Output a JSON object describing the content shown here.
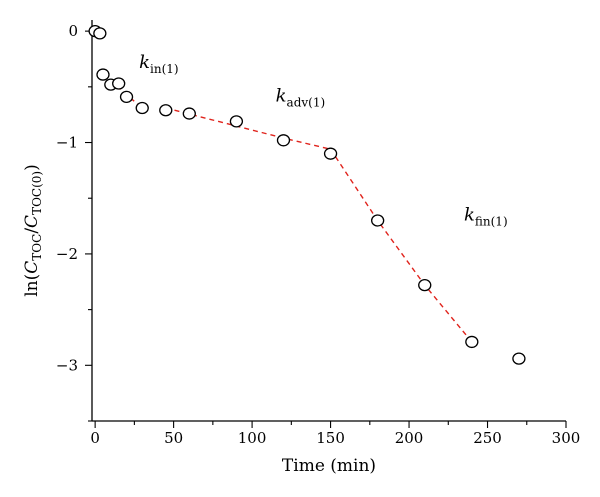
{
  "chart_data": {
    "type": "scatter",
    "title": "",
    "xlabel": "Time (min)",
    "ylabel": {
      "base": "ln(",
      "c1": "C",
      "c1_sub": "TOC",
      "slash": "/",
      "c2": "C",
      "c2_sub": "TOC(0)",
      "close": ")"
    },
    "xlim": [
      -2,
      300
    ],
    "ylim": [
      -3.5,
      0.1
    ],
    "x_ticks": [
      0,
      50,
      100,
      150,
      200,
      250,
      300
    ],
    "y_ticks": [
      0,
      -1,
      -2,
      -3
    ],
    "x_tick_labels": [
      "0",
      "50",
      "100",
      "150",
      "200",
      "250",
      "300"
    ],
    "y_tick_labels": [
      "0",
      "−1",
      "−2",
      "−3"
    ],
    "series": [
      {
        "marker": "open-circle",
        "color": "#000000",
        "points": [
          {
            "x": 0,
            "y": 0.0
          },
          {
            "x": 3,
            "y": -0.02
          },
          {
            "x": 5,
            "y": -0.39
          },
          {
            "x": 10,
            "y": -0.48
          },
          {
            "x": 15,
            "y": -0.47
          },
          {
            "x": 20,
            "y": -0.59
          },
          {
            "x": 30,
            "y": -0.69
          },
          {
            "x": 45,
            "y": -0.71
          },
          {
            "x": 60,
            "y": -0.74
          },
          {
            "x": 90,
            "y": -0.81
          },
          {
            "x": 120,
            "y": -0.98
          },
          {
            "x": 150,
            "y": -1.1
          },
          {
            "x": 180,
            "y": -1.7
          },
          {
            "x": 210,
            "y": -2.28
          },
          {
            "x": 240,
            "y": -2.79
          },
          {
            "x": 270,
            "y": -2.94
          }
        ]
      }
    ],
    "fit_lines": [
      {
        "color": "#e0231c",
        "style": "dashed",
        "points": [
          {
            "x": 5,
            "y": -0.39
          },
          {
            "x": 30,
            "y": -0.69
          }
        ]
      },
      {
        "color": "#e0231c",
        "style": "dashed",
        "points": [
          {
            "x": 45,
            "y": -0.69
          },
          {
            "x": 120,
            "y": -0.96
          },
          {
            "x": 150,
            "y": -1.06
          }
        ]
      },
      {
        "color": "#e0231c",
        "style": "dashed",
        "points": [
          {
            "x": 150,
            "y": -1.06
          },
          {
            "x": 180,
            "y": -1.7
          },
          {
            "x": 210,
            "y": -2.28
          },
          {
            "x": 240,
            "y": -2.79
          }
        ]
      }
    ],
    "annotations": [
      {
        "k": "k",
        "sub": "in(1)",
        "x": 28,
        "y": -0.33
      },
      {
        "k": "k",
        "sub": "adv(1)",
        "x": 115,
        "y": -0.63
      },
      {
        "k": "k",
        "sub": "fin(1)",
        "x": 235,
        "y": -1.7
      }
    ],
    "grid": false,
    "legend": "none"
  }
}
